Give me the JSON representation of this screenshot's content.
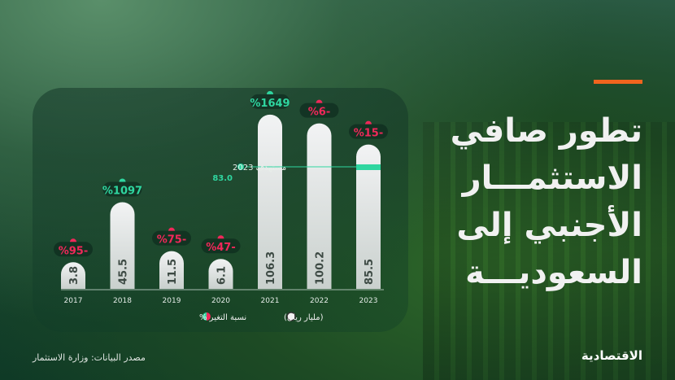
{
  "title_lines": [
    "تطور صافي",
    "الاستثمـــار",
    "الأجنبي إلى",
    "السعوديـــة"
  ],
  "source": "مصدر البيانات: وزارة الاستثمار",
  "logo": "الاقتصادية",
  "colors": {
    "accent": "#f0641e",
    "positive": "#2fd6a0",
    "negative": "#f0285a",
    "bar": "#e8eaec"
  },
  "chart_data": {
    "type": "bar",
    "categories": [
      "2017",
      "2018",
      "2019",
      "2020",
      "2021",
      "2022",
      "2023"
    ],
    "values": [
      3.8,
      45.5,
      11.5,
      6.1,
      106.3,
      100.2,
      85.5
    ],
    "value_labels": [
      "3.8",
      "45.5",
      "11.5",
      "6.1",
      "106.3",
      "100.2",
      "85.5"
    ],
    "change_pct": [
      -95,
      1097,
      -75,
      -47,
      1649,
      -6,
      -15
    ],
    "change_labels": [
      "%95-",
      "%1097",
      "%75-",
      "%47-",
      "%1649",
      "%6-",
      "%15-"
    ],
    "target": {
      "label": "مستهدف 2023",
      "value": 83.0,
      "value_label": "83.0"
    },
    "legend": [
      {
        "label": "(مليار ريال)",
        "icon": "white-circle"
      },
      {
        "label": "نسبة التغير %",
        "icon": "green-red-circle"
      }
    ]
  }
}
